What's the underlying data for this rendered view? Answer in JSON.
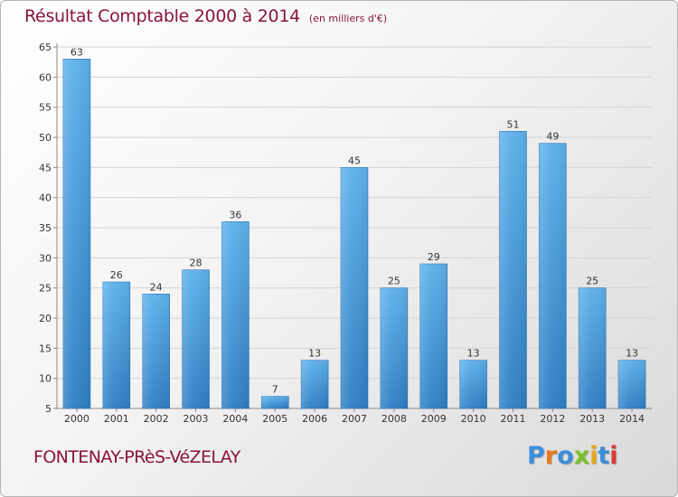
{
  "title": "Résultat Comptable 2000 à 2014",
  "unit": "(en milliers d'€)",
  "commune": "FONTENAY-PRèS-VéZELAY",
  "logo": {
    "text": "Proxiti",
    "letters": [
      {
        "char": "P",
        "color": "#3a8fd8"
      },
      {
        "char": "r",
        "color": "#e87a1e"
      },
      {
        "char": "o",
        "color": "#3a8fd8"
      },
      {
        "char": "x",
        "color": "#7cbf2a"
      },
      {
        "char": "i",
        "color": "#e8a81e"
      },
      {
        "char": "t",
        "color": "#3a8fd8"
      },
      {
        "char": "i",
        "color": "#d83a3a"
      }
    ]
  },
  "colors": {
    "title": "#8b1538",
    "bar_light": "#5eb2ec",
    "bar_dark": "#2f7fc4"
  },
  "chart_data": {
    "type": "bar",
    "title": "Résultat Comptable 2000 à 2014",
    "subtitle": "(en milliers d'€)",
    "xlabel": "",
    "ylabel": "",
    "ylim": [
      5,
      65
    ],
    "yticks": [
      5,
      10,
      15,
      20,
      25,
      30,
      35,
      40,
      45,
      50,
      55,
      60,
      65
    ],
    "grid": true,
    "categories": [
      "2000",
      "2001",
      "2002",
      "2003",
      "2004",
      "2005",
      "2006",
      "2007",
      "2008",
      "2009",
      "2010",
      "2011",
      "2012",
      "2013",
      "2014"
    ],
    "values": [
      63,
      26,
      24,
      28,
      36,
      7,
      13,
      45,
      25,
      29,
      13,
      51,
      49,
      25,
      13
    ]
  }
}
